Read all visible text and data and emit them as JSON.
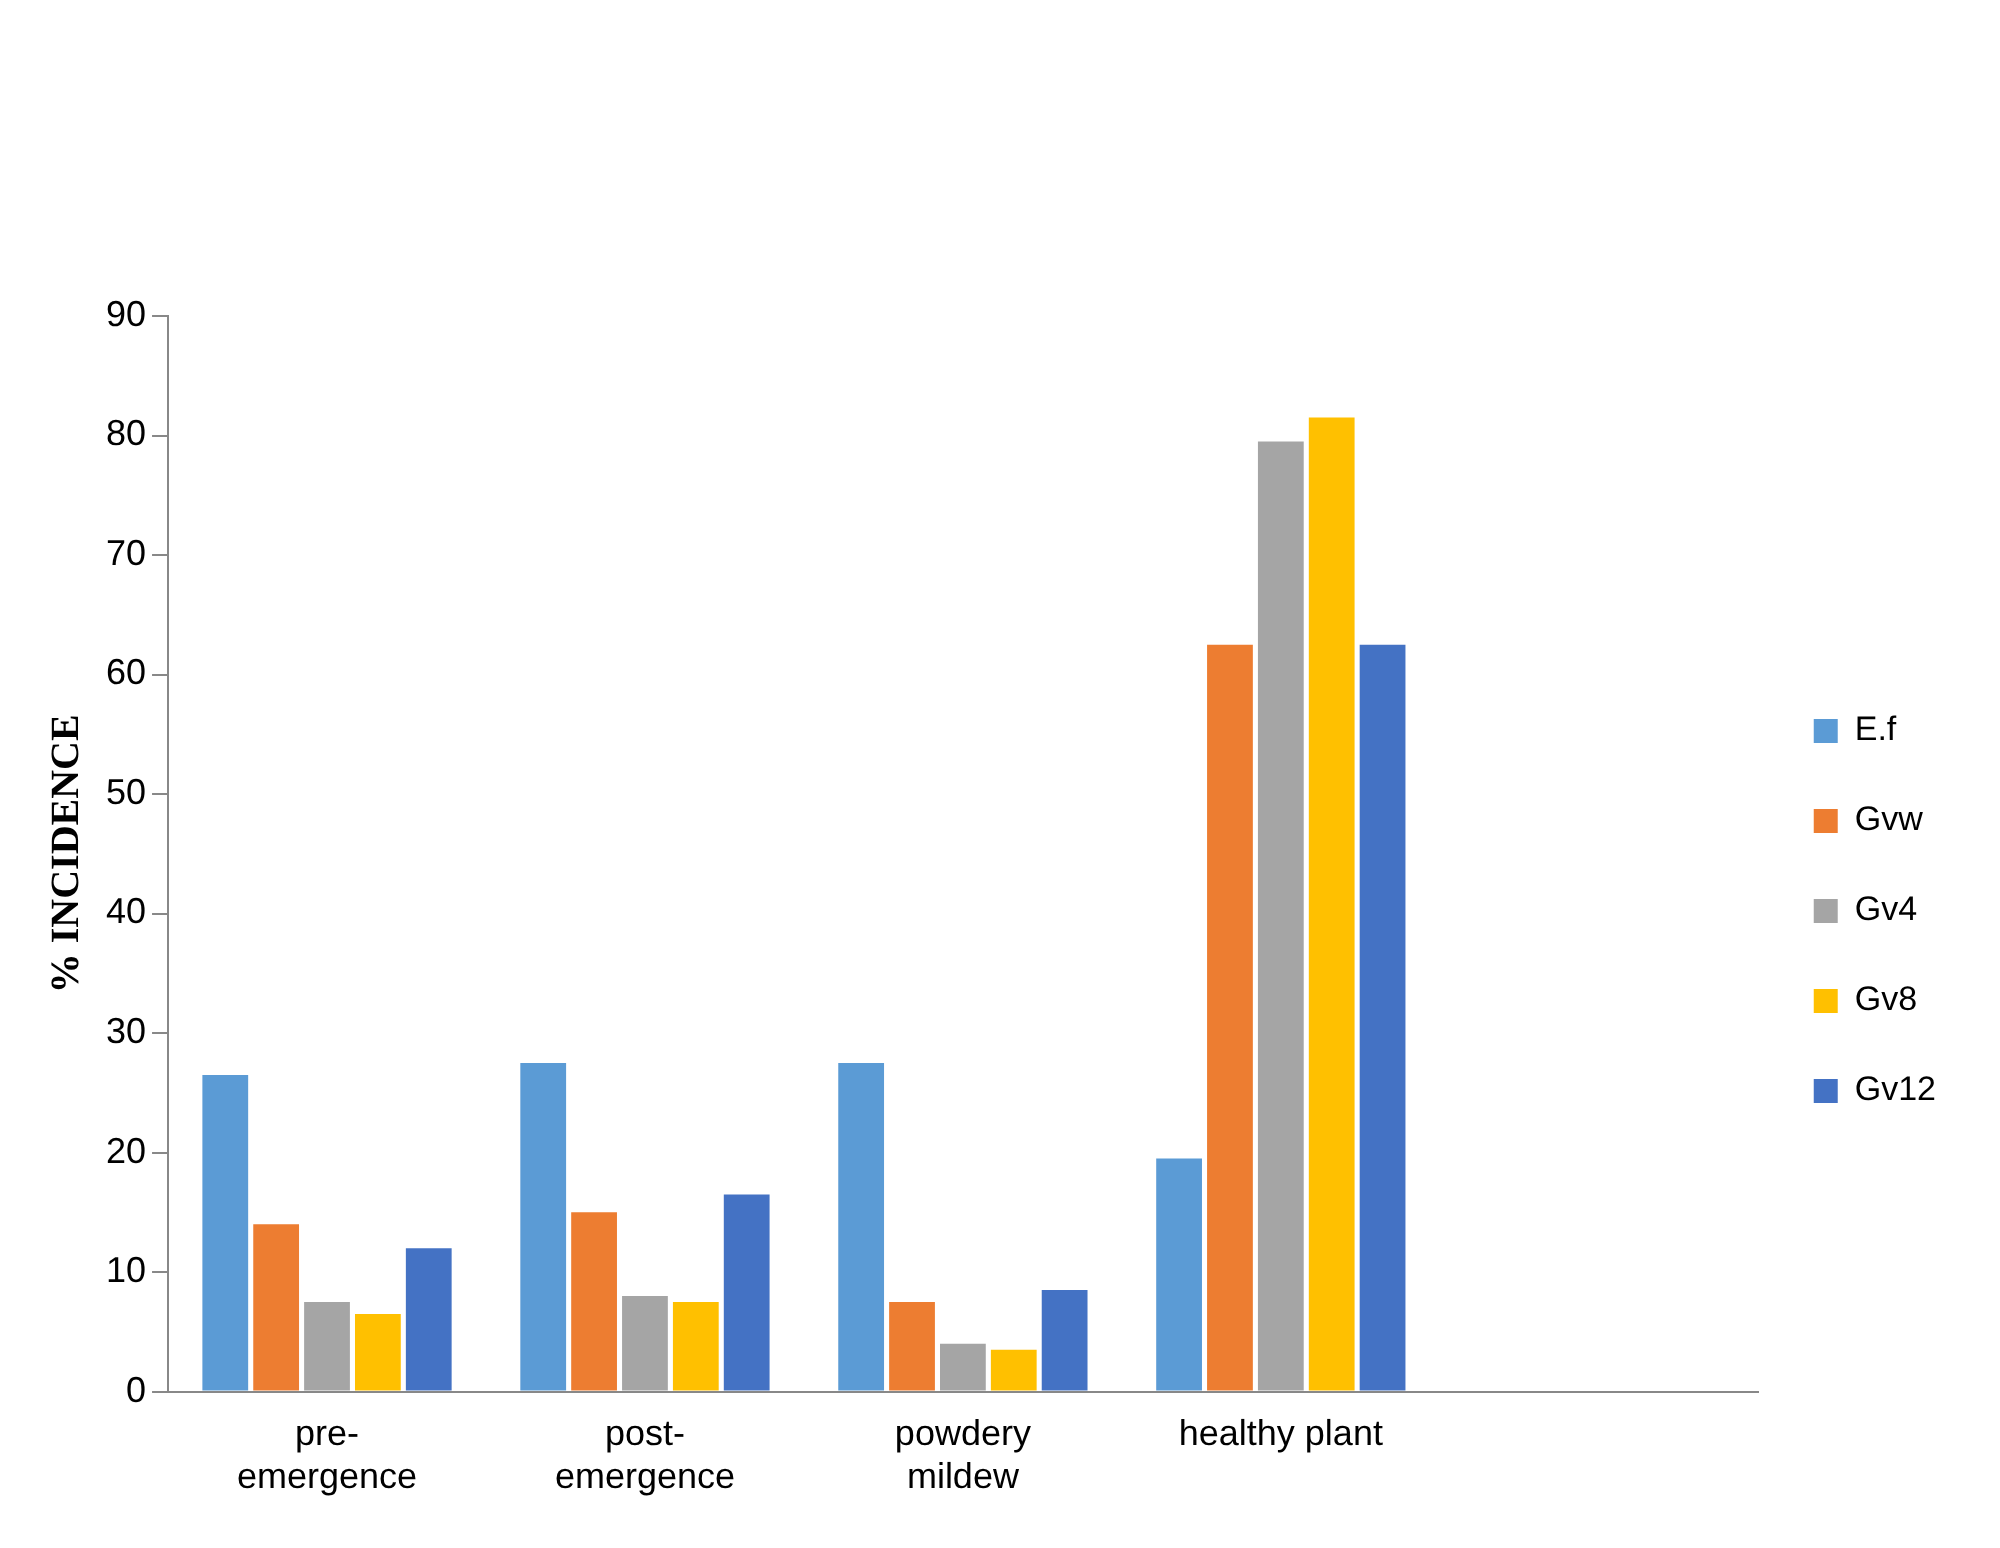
{
  "chart_data": {
    "type": "bar",
    "ylabel": "% INCIDENCE",
    "categories": [
      "pre-\nemergence",
      "post-\nemergence",
      "powdery\nmildew",
      "healthy plant",
      null
    ],
    "series": [
      {
        "name": "E.f",
        "color": "#5b9bd5",
        "values": [
          26.5,
          27.5,
          27.5,
          19.5,
          null
        ]
      },
      {
        "name": "Gvw",
        "color": "#ed7d31",
        "values": [
          14,
          15,
          7.5,
          62.5,
          null
        ]
      },
      {
        "name": "Gv4",
        "color": "#a5a5a5",
        "values": [
          7.5,
          8,
          4,
          79.5,
          null
        ]
      },
      {
        "name": "Gv8",
        "color": "#ffc000",
        "values": [
          6.5,
          7.5,
          3.5,
          81.5,
          null
        ]
      },
      {
        "name": "Gv12",
        "color": "#4472c4",
        "values": [
          12,
          16.5,
          8.5,
          62.5,
          null
        ]
      }
    ],
    "ylim": [
      0,
      90
    ],
    "yticks": [
      0,
      10,
      20,
      30,
      40,
      50,
      60,
      70,
      80,
      90
    ],
    "grid": false,
    "legend": "right"
  }
}
